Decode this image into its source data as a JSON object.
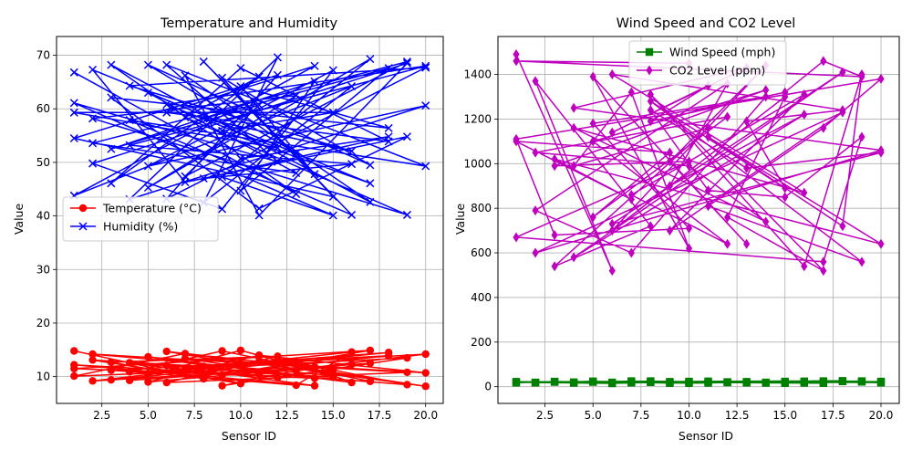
{
  "colors": {
    "temperature": "#ff0000",
    "humidity": "#0000ff",
    "wind": "#008000",
    "co2": "#bf00bf",
    "grid": "#b0b0b0"
  },
  "chart_data": [
    {
      "type": "line",
      "title": "Temperature and Humidity",
      "xlabel": "Sensor ID",
      "ylabel": "Value",
      "xlim": [
        0.05,
        20.95
      ],
      "ylim": [
        5,
        73.5
      ],
      "x_ticks": [
        2.5,
        5,
        7.5,
        10,
        12.5,
        15,
        17.5,
        20
      ],
      "x_tick_labels": [
        "2.5",
        "5.0",
        "7.5",
        "10.0",
        "12.5",
        "15.0",
        "17.5",
        "20.0"
      ],
      "y_ticks": [
        10,
        20,
        30,
        40,
        50,
        60,
        70
      ],
      "y_tick_labels": [
        "10",
        "20",
        "30",
        "40",
        "50",
        "60",
        "70"
      ],
      "grid": true,
      "legend_position": "center-left",
      "series": [
        {
          "name": "Temperature (°C)",
          "color": "#ff0000",
          "marker": "circle",
          "x": [
            1,
            8,
            3,
            12,
            6,
            19,
            2,
            15,
            10,
            4,
            17,
            9,
            14,
            1,
            7,
            20,
            11,
            5,
            16,
            13,
            3,
            18,
            8,
            2,
            10,
            6,
            15,
            12,
            19,
            4,
            9,
            17,
            1,
            14,
            7,
            20,
            11,
            5,
            16,
            13,
            3,
            18,
            8,
            2,
            10,
            6,
            15,
            12,
            19,
            4,
            9,
            17,
            1,
            14,
            7,
            20,
            11,
            5,
            16,
            13
          ],
          "y": [
            14.8,
            9.6,
            12.7,
            13.8,
            8.9,
            10.8,
            14.2,
            10.2,
            14.9,
            9.3,
            12.5,
            8.3,
            11.8,
            10.1,
            14.3,
            8.2,
            12.9,
            10.6,
            14.6,
            8.4,
            11.2,
            13.9,
            10.4,
            9.2,
            12.4,
            14.7,
            11.3,
            9.8,
            13.5,
            10.9,
            14.8,
            9.1,
            12.2,
            8.3,
            11.6,
            14.2,
            10.5,
            13.7,
            8.9,
            12.8,
            9.4,
            14.5,
            11.9,
            13.1,
            8.7,
            12.1,
            9.9,
            13.3,
            8.5,
            12.6,
            10.3,
            14.9,
            11.5,
            9.7,
            13.4,
            10.7,
            14.0,
            9.0,
            12.3,
            11.1
          ]
        },
        {
          "name": "Humidity (%)",
          "color": "#0000ff",
          "marker": "x",
          "x": [
            1,
            13,
            3,
            17,
            7,
            11,
            19,
            2,
            9,
            15,
            5,
            20,
            4,
            12,
            8,
            16,
            1,
            14,
            6,
            18,
            10,
            3,
            11,
            7,
            19,
            2,
            13,
            5,
            17,
            9,
            15,
            1,
            12,
            6,
            20,
            4,
            16,
            8,
            14,
            10,
            18,
            3,
            11,
            19,
            7,
            2,
            13,
            5,
            17,
            9,
            15,
            1,
            12,
            6,
            20,
            4,
            16,
            8,
            18,
            10,
            14,
            3,
            11,
            7,
            19,
            2,
            13,
            5,
            17,
            9,
            15,
            1,
            12,
            6,
            20,
            4,
            16,
            8,
            18,
            10
          ],
          "y": [
            66.8,
            44.1,
            68.2,
            42.6,
            66.2,
            40.1,
            68.5,
            49.8,
            41.3,
            67.2,
            49.3,
            60.6,
            43.1,
            69.6,
            42.5,
            64.2,
            43.8,
            68.0,
            59.3,
            53.9,
            67.6,
            46.1,
            66.0,
            58.4,
            40.2,
            58.2,
            62.5,
            45.3,
            69.3,
            47.3,
            40.1,
            61.1,
            50.1,
            68.2,
            49.3,
            57.9,
            40.2,
            68.8,
            47.8,
            64.2,
            56.4,
            62.1,
            41.4,
            54.8,
            46.3,
            67.3,
            51.7,
            68.2,
            49.5,
            65.8,
            43.6,
            54.5,
            66.3,
            43.2,
            67.7,
            64.3,
            52.1,
            58.2,
            67.6,
            44.7,
            65.1,
            52.5,
            60.7,
            47.4,
            68.8,
            53.6,
            48.0,
            63.0,
            46.1,
            55.9,
            59.3,
            59.3,
            52.7,
            60.8,
            68.0,
            53.2,
            49.7,
            47.0,
            54.8,
            50.7
          ]
        }
      ]
    },
    {
      "type": "line",
      "title": "Wind Speed and CO2 Level",
      "xlabel": "Sensor ID",
      "ylabel": "Value",
      "xlim": [
        0.05,
        20.95
      ],
      "ylim": [
        -75,
        1570
      ],
      "x_ticks": [
        2.5,
        5,
        7.5,
        10,
        12.5,
        15,
        17.5,
        20
      ],
      "x_tick_labels": [
        "2.5",
        "5.0",
        "7.5",
        "10.0",
        "12.5",
        "15.0",
        "17.5",
        "20.0"
      ],
      "y_ticks": [
        0,
        200,
        400,
        600,
        800,
        1000,
        1200,
        1400
      ],
      "y_tick_labels": [
        "0",
        "200",
        "400",
        "600",
        "800",
        "1000",
        "1200",
        "1400"
      ],
      "grid": true,
      "legend_position": "upper-center",
      "series": [
        {
          "name": "Wind Speed (mph)",
          "color": "#008000",
          "marker": "square",
          "x": [
            1,
            5,
            9,
            13,
            17,
            2,
            6,
            10,
            14,
            18,
            3,
            7,
            11,
            15,
            19,
            4,
            8,
            12,
            16,
            20,
            1,
            6,
            11,
            16,
            2,
            7,
            12,
            17,
            3,
            8,
            13,
            18,
            4,
            9,
            14,
            19,
            5,
            10,
            15,
            20
          ],
          "y": [
            18,
            24,
            16,
            22,
            25,
            19,
            15,
            23,
            17,
            26,
            21,
            18,
            24,
            16,
            22,
            20,
            25,
            19,
            17,
            23,
            22,
            19,
            17,
            24,
            18,
            25,
            21,
            16,
            23,
            20,
            18,
            24,
            17,
            22,
            19,
            25,
            21,
            16,
            23,
            18
          ]
        },
        {
          "name": "CO2 Level (ppm)",
          "color": "#bf00bf",
          "marker": "diamond",
          "x": [
            1,
            6,
            2,
            8,
            3,
            11,
            4,
            7,
            10,
            5,
            13,
            9,
            14,
            6,
            15,
            12,
            17,
            8,
            16,
            19,
            18,
            11,
            20,
            3,
            7,
            1,
            9,
            5,
            12,
            2,
            10,
            14,
            4,
            16,
            6,
            18,
            13,
            15,
            8,
            19,
            11,
            17,
            20,
            1,
            3,
            10,
            5,
            14,
            7,
            2,
            12,
            9,
            16,
            4,
            18,
            6,
            20,
            13,
            8,
            11,
            15,
            19,
            17,
            1,
            10,
            3,
            14,
            5,
            12,
            7,
            16,
            9,
            18,
            2,
            20,
            4,
            13,
            6,
            11,
            8,
            15,
            17,
            19,
            1,
            10
          ],
          "y": [
            1490,
            520,
            1370,
            720,
            540,
            1160,
            990,
            1320,
            620,
            1390,
            640,
            1010,
            1440,
            700,
            1300,
            760,
            520,
            1310,
            540,
            1400,
            720,
            1120,
            640,
            1020,
            840,
            1100,
            1050,
            760,
            1210,
            1050,
            990,
            740,
            1160,
            870,
            1400,
            1240,
            1190,
            890,
            1280,
            560,
            810,
            1160,
            1380,
            1110,
            680,
            710,
            1180,
            1300,
            600,
            790,
            1360,
            900,
            1220,
            580,
            1410,
            730,
            1050,
            980,
            1240,
            880,
            850,
            1120,
            560,
            670,
            1010,
            990,
            1330,
            1100,
            640,
            860,
            1310,
            700,
            1230,
            600,
            1060,
            1250,
            1430,
            1140,
            1350,
            1190,
            1320,
            1460,
            1390,
            1460,
            1450
          ]
        }
      ]
    }
  ]
}
